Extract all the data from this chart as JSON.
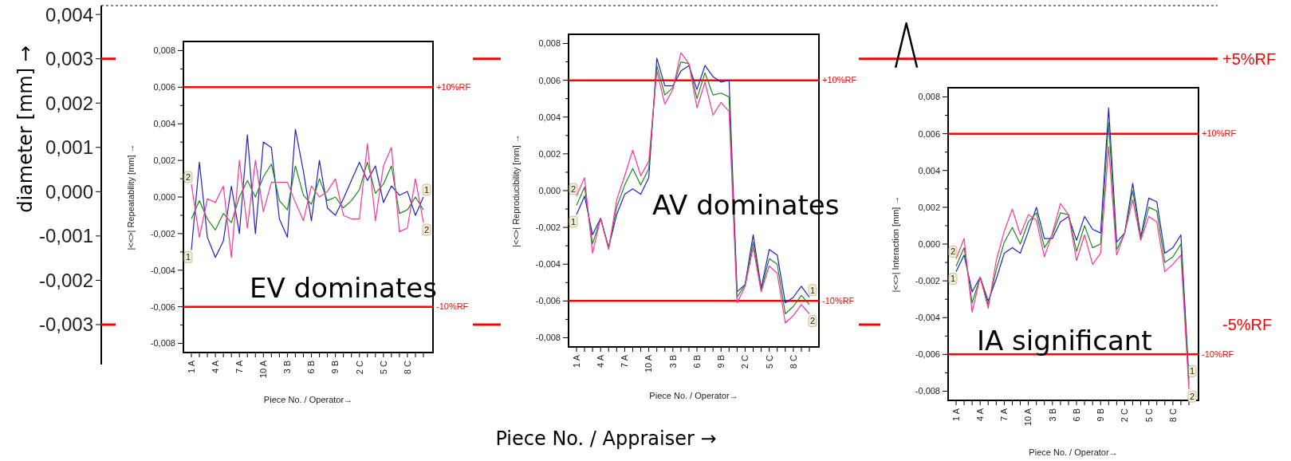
{
  "chart_data": [
    {
      "type": "line",
      "categories": [
        null,
        null,
        null,
        null,
        null,
        null,
        null,
        null,
        null,
        null,
        null,
        null,
        null,
        null,
        null,
        null,
        null,
        null,
        null,
        null,
        null,
        null,
        null,
        null,
        null,
        null,
        null,
        null,
        null,
        null,
        null,
        null,
        null,
        null,
        null,
        null,
        null,
        null,
        null,
        null,
        null,
        null,
        null,
        null,
        null,
        null,
        null,
        null,
        null,
        null,
        null,
        null,
        null,
        null,
        null,
        null,
        null,
        null,
        null,
        null,
        null,
        null,
        null,
        null,
        null,
        null,
        null,
        null,
        null,
        null,
        null,
        null,
        null,
        null,
        null,
        null,
        null,
        null,
        null,
        null,
        null,
        null,
        null,
        null,
        null,
        null,
        null,
        null,
        null,
        null,
        null,
        null,
        null,
        null,
        null,
        null,
        null,
        null,
        null,
        null,
        null,
        null,
        null,
        null,
        null
      ],
      "series": [
        {
          "color": "#000000",
          "values": [
            null,
            null,
            null,
            null,
            null,
            null,
            null,
            null,
            null,
            null,
            null,
            null,
            null,
            null,
            null,
            null,
            null,
            null,
            null,
            null,
            null,
            null,
            null,
            null,
            null,
            null,
            null,
            null,
            null,
            null,
            null,
            null,
            null,
            null,
            null,
            null,
            null,
            null,
            null,
            null,
            null,
            null,
            null,
            null,
            null,
            null,
            null,
            null,
            null,
            null,
            null,
            null,
            null,
            null,
            null,
            null,
            null,
            null,
            null,
            null,
            null,
            null,
            null,
            null,
            null,
            null,
            null,
            null,
            null,
            null,
            null,
            null,
            null,
            null,
            0.0028,
            0.0038,
            0.0028,
            null,
            null,
            null,
            null,
            null,
            null,
            null,
            null,
            null,
            null,
            null,
            null,
            null,
            null,
            null,
            null,
            null,
            null,
            null,
            null,
            null,
            null,
            null,
            null,
            null,
            null,
            null,
            null
          ]
        }
      ],
      "xlabel": "Piece No. / Appraiser  →",
      "ylabel": "diameter [mm]  →",
      "tick_labels": "y",
      "ylim": [
        -0.0039,
        0.0042
      ],
      "yticks": [
        {
          "value": 0.004,
          "label": "0,004"
        },
        {
          "value": 0.003,
          "label": "0,003"
        },
        {
          "value": 0.002,
          "label": "0,002"
        },
        {
          "value": 0.001,
          "label": "0,001"
        },
        {
          "value": 0,
          "label": "0,000"
        },
        {
          "value": -0.001,
          "label": "-0,001"
        },
        {
          "value": -0.002,
          "label": "-0,002"
        },
        {
          "value": -0.003,
          "label": "-0,003"
        }
      ],
      "ref_lines": [
        {
          "axis": "y",
          "value": 0.003,
          "label": "+5%RF",
          "color": "#ff0000"
        },
        {
          "axis": "y",
          "value": -0.003,
          "label": "-5%RF",
          "color": "#ff0000"
        }
      ]
    },
    {
      "type": "line",
      "xlabel": "Piece No. / Operator→",
      "ylabel": "|<<>|  Repeatability [mm] →",
      "annotations": [
        "EV dominates"
      ],
      "categories": [
        "1 A",
        null,
        null,
        "4 A",
        null,
        null,
        "7 A",
        null,
        null,
        "10 A",
        null,
        null,
        "3 B",
        null,
        null,
        "6 B",
        null,
        null,
        "9 B",
        null,
        null,
        "2 C",
        null,
        null,
        "5 C",
        null,
        null,
        "8 C",
        null,
        null
      ],
      "ylim": [
        -0.0085,
        0.0085
      ],
      "yticks": [
        {
          "value": 0.008,
          "label": "0,008"
        },
        {
          "value": 0.007,
          "label": null
        },
        {
          "value": 0.006,
          "label": "0,006"
        },
        {
          "value": 0.005,
          "label": null
        },
        {
          "value": 0.004,
          "label": "0,004"
        },
        {
          "value": 0.003,
          "label": null
        },
        {
          "value": 0.002,
          "label": "0,002"
        },
        {
          "value": 0.001,
          "label": null
        },
        {
          "value": 0,
          "label": "0,000"
        },
        {
          "value": -0.001,
          "label": null
        },
        {
          "value": -0.002,
          "label": "-0,002"
        },
        {
          "value": -0.003,
          "label": null
        },
        {
          "value": -0.004,
          "label": "-0,004"
        },
        {
          "value": -0.005,
          "label": null
        },
        {
          "value": -0.006,
          "label": "-0,006"
        },
        {
          "value": -0.007,
          "label": null
        },
        {
          "value": -0.008,
          "label": "-0,008"
        }
      ],
      "ref_lines": [
        {
          "axis": "y",
          "value": 0.006,
          "label": "+10%RF",
          "color": "#ff0000"
        },
        {
          "axis": "y",
          "value": -0.006,
          "label": "-10%RF",
          "color": "#ff0000"
        }
      ],
      "series": [
        {
          "name": "1",
          "color": "#2020d0",
          "values": [
            -0.0029,
            0.0019,
            -0.0022,
            -0.0033,
            -0.0024,
            0.0006,
            -0.002,
            0.0034,
            -0.002,
            0.003,
            0.0027,
            -0.0012,
            -0.0022,
            0.0037,
            0.0014,
            -0.0013,
            0.002,
            -0.0006,
            -0.001,
            -0.0001,
            0.0009,
            0.0019,
            0.0009,
            0.0017,
            -0.0003,
            0.0006,
            0.0001,
            0.0003,
            -0.001,
            0
          ]
        },
        {
          "color": "#1a8a1a",
          "values": [
            -0.0012,
            -0.0002,
            -0.0012,
            -0.0018,
            -0.0009,
            -0.0014,
            0,
            0.0009,
            0,
            0.0011,
            0.0018,
            -0.0002,
            -0.0007,
            0.0017,
            0.0001,
            -0.0004,
            0.001,
            -0.0002,
            0,
            -0.0006,
            -0.0002,
            0.0004,
            0.0019,
            0.0002,
            0.0007,
            0.0017,
            -0.0009,
            -0.0007,
            0,
            -0.0007
          ]
        },
        {
          "name": "2",
          "color": "#ff3399",
          "values": [
            0.0007,
            -0.0022,
            -0.0001,
            -0.0003,
            0.0006,
            -0.0033,
            0.002,
            -0.0017,
            0.002,
            -0.0008,
            0.0008,
            0.0008,
            0.0008,
            -0.0003,
            -0.0013,
            0.0006,
            0,
            0.0003,
            0.001,
            -0.001,
            -0.0012,
            -0.0012,
            0.0029,
            -0.0013,
            0.0017,
            0.0027,
            -0.0019,
            -0.0017,
            0.001,
            -0.0014
          ]
        }
      ]
    },
    {
      "type": "line",
      "xlabel": "Piece No. / Operator→",
      "ylabel": "|<<>|  Reproducibility [mm] →",
      "annotations": [
        "AV dominates"
      ],
      "categories": [
        "1 A",
        null,
        null,
        "4 A",
        null,
        null,
        "7 A",
        null,
        null,
        "10 A",
        null,
        null,
        "3 B",
        null,
        null,
        "6 B",
        null,
        null,
        "9 B",
        null,
        null,
        "2 C",
        null,
        null,
        "5 C",
        null,
        null,
        "8 C",
        null,
        null
      ],
      "ylim": [
        -0.0085,
        0.0085
      ],
      "yticks": [
        {
          "value": 0.008,
          "label": "0,008"
        },
        {
          "value": 0.007,
          "label": null
        },
        {
          "value": 0.006,
          "label": "0,006"
        },
        {
          "value": 0.005,
          "label": null
        },
        {
          "value": 0.004,
          "label": "0,004"
        },
        {
          "value": 0.003,
          "label": null
        },
        {
          "value": 0.002,
          "label": "0,002"
        },
        {
          "value": 0.001,
          "label": null
        },
        {
          "value": 0,
          "label": "0,000"
        },
        {
          "value": -0.001,
          "label": null
        },
        {
          "value": -0.002,
          "label": "-0,002"
        },
        {
          "value": -0.003,
          "label": null
        },
        {
          "value": -0.004,
          "label": "-0,004"
        },
        {
          "value": -0.005,
          "label": null
        },
        {
          "value": -0.006,
          "label": "-0,006"
        },
        {
          "value": -0.007,
          "label": null
        },
        {
          "value": -0.008,
          "label": "-0,008"
        }
      ],
      "ref_lines": [
        {
          "axis": "y",
          "value": 0.006,
          "label": "+10%RF",
          "color": "#ff0000"
        },
        {
          "axis": "y",
          "value": -0.006,
          "label": "-10%RF",
          "color": "#ff0000"
        }
      ],
      "series": [
        {
          "name": "1",
          "color": "#2020d0",
          "values": [
            -0.0013,
            -0.0003,
            -0.0024,
            -0.0015,
            -0.0031,
            -0.0013,
            -0.0002,
            0.0001,
            -0.0002,
            0.0007,
            0.0072,
            0.0057,
            0.0057,
            0.0065,
            0.0068,
            0.0055,
            0.0068,
            0.0062,
            0.0059,
            0.006,
            -0.0055,
            -0.0051,
            -0.0024,
            -0.0053,
            -0.0032,
            -0.0035,
            -0.0061,
            -0.0058,
            -0.0052,
            -0.0058
          ]
        },
        {
          "color": "#1a8a1a",
          "values": [
            -0.0008,
            0.0002,
            -0.0029,
            -0.0015,
            -0.0031,
            -0.0009,
            0.0003,
            0.0012,
            0.0003,
            0.0012,
            0.0068,
            0.0052,
            0.0056,
            0.007,
            0.0069,
            0.005,
            0.0064,
            0.0052,
            0.0053,
            0.0051,
            -0.0058,
            -0.0051,
            -0.0028,
            -0.0054,
            -0.0037,
            -0.004,
            -0.0067,
            -0.0063,
            -0.0057,
            -0.0062
          ]
        },
        {
          "name": "2",
          "color": "#ff3399",
          "values": [
            -0.0003,
            0.0007,
            -0.0034,
            -0.0015,
            -0.0032,
            -0.0005,
            0.0008,
            0.0022,
            0.0008,
            0.0016,
            0.0065,
            0.0047,
            0.0055,
            0.0075,
            0.0069,
            0.0045,
            0.0059,
            0.0041,
            0.0048,
            0.0043,
            -0.0061,
            -0.0052,
            -0.0031,
            -0.0055,
            -0.0041,
            -0.0045,
            -0.0072,
            -0.0068,
            -0.0062,
            -0.0067
          ]
        }
      ]
    },
    {
      "type": "line",
      "xlabel": "Piece No. / Operator→",
      "ylabel": "|<<>|  Interaction [mm] →",
      "annotations": [
        "IA significant"
      ],
      "categories": [
        "1 A",
        null,
        null,
        "4 A",
        null,
        null,
        "7 A",
        null,
        null,
        "10 A",
        null,
        null,
        "3 B",
        null,
        null,
        "6 B",
        null,
        null,
        "9 B",
        null,
        null,
        "2 C",
        null,
        null,
        "5 C",
        null,
        null,
        "8 C",
        null,
        null
      ],
      "ylim": [
        -0.0085,
        0.0085
      ],
      "yticks": [
        {
          "value": 0.008,
          "label": "0,008"
        },
        {
          "value": 0.007,
          "label": null
        },
        {
          "value": 0.006,
          "label": "0,006"
        },
        {
          "value": 0.005,
          "label": null
        },
        {
          "value": 0.004,
          "label": "0,004"
        },
        {
          "value": 0.003,
          "label": null
        },
        {
          "value": 0.002,
          "label": "0,002"
        },
        {
          "value": 0.001,
          "label": null
        },
        {
          "value": 0,
          "label": "0,000"
        },
        {
          "value": -0.001,
          "label": null
        },
        {
          "value": -0.002,
          "label": "-0,002"
        },
        {
          "value": -0.003,
          "label": null
        },
        {
          "value": -0.004,
          "label": "-0,004"
        },
        {
          "value": -0.005,
          "label": null
        },
        {
          "value": -0.006,
          "label": "-0,006"
        },
        {
          "value": -0.007,
          "label": null
        },
        {
          "value": -0.008,
          "label": "-0,008"
        }
      ],
      "ref_lines": [
        {
          "axis": "y",
          "value": 0.006,
          "label": "+10%RF",
          "color": "#ff0000"
        },
        {
          "axis": "y",
          "value": -0.006,
          "label": "-10%RF",
          "color": "#ff0000"
        }
      ],
      "series": [
        {
          "name": "1",
          "color": "#2020d0",
          "values": [
            -0.0015,
            -0.0006,
            -0.0026,
            -0.0018,
            -0.0031,
            -0.0019,
            -0.0005,
            -0.0002,
            -0.0005,
            0.0007,
            0.002,
            0.0003,
            0.0003,
            0.0012,
            0.0015,
            0.0002,
            0.0015,
            0.0008,
            0.0006,
            0.0074,
            0.0001,
            0.0006,
            0.0033,
            0.0004,
            0.0025,
            0.0023,
            -0.0005,
            -0.0002,
            0.0005,
            -0.0073
          ]
        },
        {
          "color": "#1a8a1a",
          "values": [
            -0.0012,
            -0.0002,
            -0.0032,
            -0.0018,
            -0.0033,
            -0.0014,
            0.0001,
            0.0009,
            0,
            0.0012,
            0.0017,
            -0.0002,
            0.0005,
            0.0017,
            0.0016,
            -0.0004,
            0.001,
            -0.0002,
            0,
            0.0066,
            -0.0003,
            0.0006,
            0.0029,
            0.0003,
            0.002,
            0.0018,
            -0.001,
            -0.0007,
            0,
            -0.0076
          ]
        },
        {
          "name": "2",
          "color": "#ff3399",
          "values": [
            -0.0008,
            0.0003,
            -0.0037,
            -0.0018,
            -0.0035,
            -0.0009,
            0.0007,
            0.0019,
            0.0005,
            0.0016,
            0.0013,
            -0.0007,
            0.0006,
            0.0022,
            0.0016,
            -0.0009,
            0.0005,
            -0.0011,
            -0.0005,
            0.0053,
            -0.0006,
            0.0006,
            0.0024,
            0.0002,
            0.0015,
            0.0012,
            -0.0015,
            -0.0011,
            -0.0006,
            -0.0079
          ]
        }
      ]
    }
  ]
}
